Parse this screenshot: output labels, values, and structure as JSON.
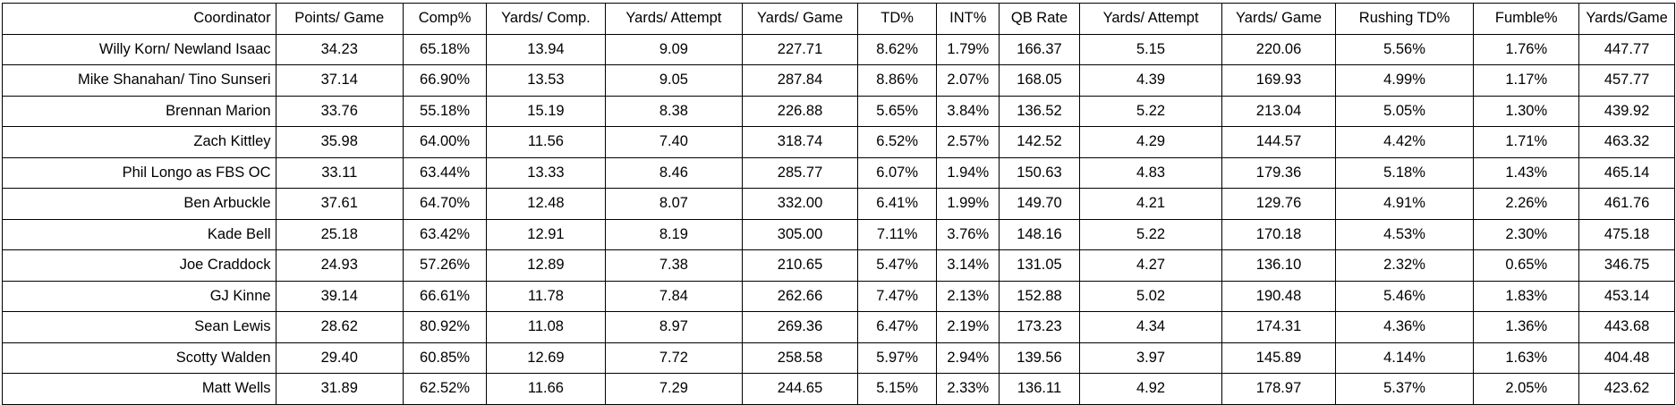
{
  "table": {
    "headers": [
      "Coordinator",
      "Points/ Game",
      "Comp%",
      "Yards/ Comp.",
      "Yards/ Attempt",
      "Yards/ Game",
      "TD%",
      "INT%",
      "QB Rate",
      "Yards/ Attempt",
      "Yards/ Game",
      "Rushing TD%",
      "Fumble%",
      "Yards/Game"
    ],
    "rows": [
      [
        "Willy Korn/ Newland Isaac",
        "34.23",
        "65.18%",
        "13.94",
        "9.09",
        "227.71",
        "8.62%",
        "1.79%",
        "166.37",
        "5.15",
        "220.06",
        "5.56%",
        "1.76%",
        "447.77"
      ],
      [
        "Mike Shanahan/ Tino Sunseri",
        "37.14",
        "66.90%",
        "13.53",
        "9.05",
        "287.84",
        "8.86%",
        "2.07%",
        "168.05",
        "4.39",
        "169.93",
        "4.99%",
        "1.17%",
        "457.77"
      ],
      [
        "Brennan Marion",
        "33.76",
        "55.18%",
        "15.19",
        "8.38",
        "226.88",
        "5.65%",
        "3.84%",
        "136.52",
        "5.22",
        "213.04",
        "5.05%",
        "1.30%",
        "439.92"
      ],
      [
        "Zach Kittley",
        "35.98",
        "64.00%",
        "11.56",
        "7.40",
        "318.74",
        "6.52%",
        "2.57%",
        "142.52",
        "4.29",
        "144.57",
        "4.42%",
        "1.71%",
        "463.32"
      ],
      [
        "Phil Longo as FBS OC",
        "33.11",
        "63.44%",
        "13.33",
        "8.46",
        "285.77",
        "6.07%",
        "1.94%",
        "150.63",
        "4.83",
        "179.36",
        "5.18%",
        "1.43%",
        "465.14"
      ],
      [
        "Ben Arbuckle",
        "37.61",
        "64.70%",
        "12.48",
        "8.07",
        "332.00",
        "6.41%",
        "1.99%",
        "149.70",
        "4.21",
        "129.76",
        "4.91%",
        "2.26%",
        "461.76"
      ],
      [
        "Kade Bell",
        "25.18",
        "63.42%",
        "12.91",
        "8.19",
        "305.00",
        "7.11%",
        "3.76%",
        "148.16",
        "5.22",
        "170.18",
        "4.53%",
        "2.30%",
        "475.18"
      ],
      [
        "Joe Craddock",
        "24.93",
        "57.26%",
        "12.89",
        "7.38",
        "210.65",
        "5.47%",
        "3.14%",
        "131.05",
        "4.27",
        "136.10",
        "2.32%",
        "0.65%",
        "346.75"
      ],
      [
        "GJ Kinne",
        "39.14",
        "66.61%",
        "11.78",
        "7.84",
        "262.66",
        "7.47%",
        "2.13%",
        "152.88",
        "5.02",
        "190.48",
        "5.46%",
        "1.83%",
        "453.14"
      ],
      [
        "Sean Lewis",
        "28.62",
        "80.92%",
        "11.08",
        "8.97",
        "269.36",
        "6.47%",
        "2.19%",
        "173.23",
        "4.34",
        "174.31",
        "4.36%",
        "1.36%",
        "443.68"
      ],
      [
        "Scotty Walden",
        "29.40",
        "60.85%",
        "12.69",
        "7.72",
        "258.58",
        "5.97%",
        "2.94%",
        "139.56",
        "3.97",
        "145.89",
        "4.14%",
        "1.63%",
        "404.48"
      ],
      [
        "Matt Wells",
        "31.89",
        "62.52%",
        "11.66",
        "7.29",
        "244.65",
        "5.15%",
        "2.33%",
        "136.11",
        "4.92",
        "178.97",
        "5.37%",
        "2.05%",
        "423.62"
      ]
    ]
  }
}
